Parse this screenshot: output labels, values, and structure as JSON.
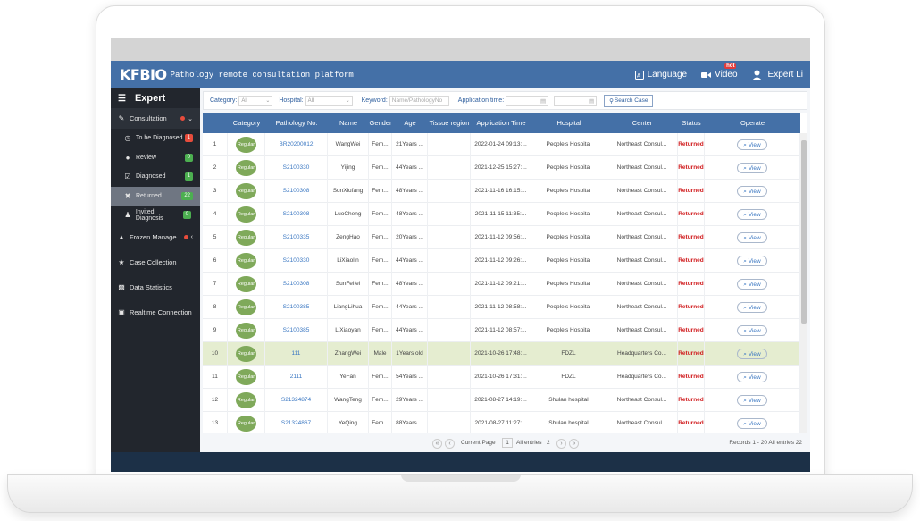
{
  "header": {
    "logo": "KFBIO",
    "subtitle": "Pathology remote consultation platform",
    "language_label": "Language",
    "video_label": "Video",
    "video_badge": "hot",
    "user_label": "Expert Li"
  },
  "sidebar": {
    "title": "Expert",
    "consultation": "Consultation",
    "sub_items": [
      {
        "label": "To be Diagnosed",
        "badge": "1",
        "badge_color": "#e74c3c"
      },
      {
        "label": "Review",
        "badge": "0",
        "badge_color": "#4caf50"
      },
      {
        "label": "Diagnosed",
        "badge": "1",
        "badge_color": "#4caf50"
      },
      {
        "label": "Returned",
        "badge": "22",
        "badge_color": "#4caf50"
      },
      {
        "label": "Invited Diagnosis",
        "badge": "0",
        "badge_color": "#4caf50"
      }
    ],
    "frozen": "Frozen Manage",
    "items": [
      "Case Collection",
      "Data Statistics",
      "Realtime Connection"
    ]
  },
  "filters": {
    "category_label": "Category:",
    "category_value": "All",
    "hospital_label": "Hospital:",
    "hospital_value": "All",
    "keyword_label": "Keyword:",
    "keyword_placeholder": "Name/PathologyNo",
    "time_label": "Application time:",
    "search_label": "Search Case"
  },
  "table": {
    "columns": [
      "",
      "Category",
      "Pathology No.",
      "Name",
      "Gender",
      "Age",
      "Tissue region",
      "Application Time",
      "Hospital",
      "Center",
      "Status",
      "Operate"
    ],
    "category_text": "Regular",
    "view_label": "View",
    "rows": [
      {
        "no": "1",
        "path": "BR20200012",
        "name": "WangWei",
        "gender": "Fem...",
        "age": "21Years ...",
        "time": "2022-01-24 09:13:...",
        "hospital": "People's Hospital",
        "center": "Northeast Consul...",
        "status": "Returned"
      },
      {
        "no": "2",
        "path": "S2100330",
        "name": "Yijing",
        "gender": "Fem...",
        "age": "44Years ...",
        "time": "2021-12-25 15:27:...",
        "hospital": "People's Hospital",
        "center": "Northeast Consul...",
        "status": "Returned"
      },
      {
        "no": "3",
        "path": "S2100308",
        "name": "SunXiufang",
        "gender": "Fem...",
        "age": "48Years ...",
        "time": "2021-11-16 16:15:...",
        "hospital": "People's Hospital",
        "center": "Northeast Consul...",
        "status": "Returned"
      },
      {
        "no": "4",
        "path": "S2100308",
        "name": "LuoCheng",
        "gender": "Fem...",
        "age": "48Years ...",
        "time": "2021-11-15 11:35:...",
        "hospital": "People's Hospital",
        "center": "Northeast Consul...",
        "status": "Returned"
      },
      {
        "no": "5",
        "path": "S2100335",
        "name": "ZengHao",
        "gender": "Fem...",
        "age": "20Years ...",
        "time": "2021-11-12 09:56:...",
        "hospital": "People's Hospital",
        "center": "Northeast Consul...",
        "status": "Returned"
      },
      {
        "no": "6",
        "path": "S2100330",
        "name": "LiXiaolin",
        "gender": "Fem...",
        "age": "44Years ...",
        "time": "2021-11-12 09:26:...",
        "hospital": "People's Hospital",
        "center": "Northeast Consul...",
        "status": "Returned"
      },
      {
        "no": "7",
        "path": "S2100308",
        "name": "SunFeifei",
        "gender": "Fem...",
        "age": "48Years ...",
        "time": "2021-11-12 09:21:...",
        "hospital": "People's Hospital",
        "center": "Northeast Consul...",
        "status": "Returned"
      },
      {
        "no": "8",
        "path": "S2100385",
        "name": "LiangLihua",
        "gender": "Fem...",
        "age": "44Years ...",
        "time": "2021-11-12 08:58:...",
        "hospital": "People's Hospital",
        "center": "Northeast Consul...",
        "status": "Returned"
      },
      {
        "no": "9",
        "path": "S2100385",
        "name": "LiXiaoyan",
        "gender": "Fem...",
        "age": "44Years ...",
        "time": "2021-11-12 08:57:...",
        "hospital": "People's Hospital",
        "center": "Northeast Consul...",
        "status": "Returned"
      },
      {
        "no": "10",
        "path": "111",
        "name": "ZhangWei",
        "gender": "Male",
        "age": "1Years old",
        "time": "2021-10-26 17:48:...",
        "hospital": "FDZL",
        "center": "Headquarters Co...",
        "status": "Returned"
      },
      {
        "no": "11",
        "path": "2111",
        "name": "YeFan",
        "gender": "Fem...",
        "age": "54Years ...",
        "time": "2021-10-26 17:31:...",
        "hospital": "FDZL",
        "center": "Headquarters Co...",
        "status": "Returned"
      },
      {
        "no": "12",
        "path": "S21324874",
        "name": "WangTeng",
        "gender": "Fem...",
        "age": "29Years ...",
        "time": "2021-08-27 14:19:...",
        "hospital": "Shulan hospital",
        "center": "Northeast Consul...",
        "status": "Returned"
      },
      {
        "no": "13",
        "path": "S21324867",
        "name": "YeQing",
        "gender": "Fem...",
        "age": "88Years ...",
        "time": "2021-08-27 11:27:...",
        "hospital": "Shulan hospital",
        "center": "Northeast Consul...",
        "status": "Returned"
      }
    ],
    "highlight_row": "10"
  },
  "pager": {
    "current_label": "Current Page",
    "current_value": "1",
    "entries_label": "All entries",
    "entries_value": "2",
    "records": "Records 1 - 20 All entries 22"
  }
}
